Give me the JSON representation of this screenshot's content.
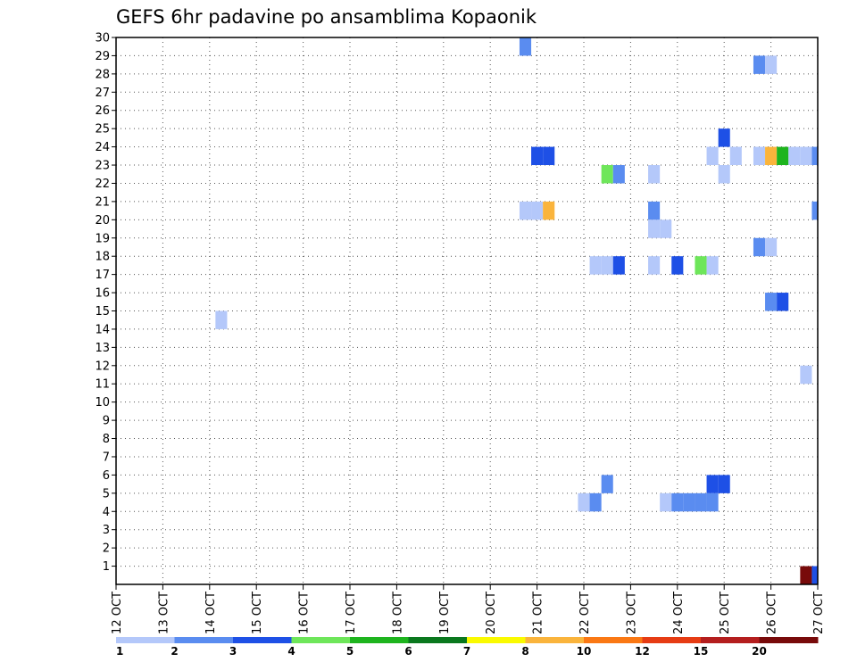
{
  "chart_data": {
    "type": "heatmap",
    "title": "GEFS 6hr padavine po ansamblima Kopaonik",
    "xlabel": "",
    "ylabel": "",
    "x_tick_labels": [
      "12 OCT",
      "13 OCT",
      "14 OCT",
      "15 OCT",
      "16 OCT",
      "17 OCT",
      "18 OCT",
      "19 OCT",
      "20 OCT",
      "21 OCT",
      "22 OCT",
      "23 OCT",
      "24 OCT",
      "25 OCT",
      "26 OCT",
      "27 OCT"
    ],
    "x_range_days": [
      0,
      15
    ],
    "y_tick_labels": [
      "1",
      "2",
      "3",
      "4",
      "5",
      "6",
      "7",
      "8",
      "9",
      "10",
      "11",
      "12",
      "13",
      "14",
      "15",
      "16",
      "17",
      "18",
      "19",
      "20",
      "21",
      "22",
      "23",
      "24",
      "25",
      "26",
      "27",
      "28",
      "29",
      "30"
    ],
    "y_range": [
      0,
      30
    ],
    "grid": true,
    "grid_style": "dotted",
    "legend_placement": "bottom",
    "colorbar": {
      "labels": [
        "1",
        "2",
        "3",
        "4",
        "5",
        "6",
        "7",
        "8",
        "10",
        "12",
        "15",
        "20"
      ],
      "colors": [
        "#b4c8fa",
        "#5a8cf0",
        "#1e50e6",
        "#6ee65a",
        "#1eb41e",
        "#0a781e",
        "#fafa00",
        "#fab43c",
        "#fa7814",
        "#e63c14",
        "#b41e1e",
        "#780a0a"
      ]
    },
    "time_step_hours": 6,
    "cells": [
      {
        "t": 8.75,
        "m": 30,
        "c": 1
      },
      {
        "t": 13.75,
        "m": 29,
        "c": 1
      },
      {
        "t": 14.0,
        "m": 29,
        "c": 0
      },
      {
        "t": 13.0,
        "m": 25,
        "c": 2
      },
      {
        "t": 9.0,
        "m": 24,
        "c": 2
      },
      {
        "t": 9.25,
        "m": 24,
        "c": 2
      },
      {
        "t": 12.75,
        "m": 24,
        "c": 0
      },
      {
        "t": 13.25,
        "m": 24,
        "c": 0
      },
      {
        "t": 13.75,
        "m": 24,
        "c": 0
      },
      {
        "t": 14.0,
        "m": 24,
        "c": 7
      },
      {
        "t": 14.25,
        "m": 24,
        "c": 4
      },
      {
        "t": 14.5,
        "m": 24,
        "c": 0
      },
      {
        "t": 14.75,
        "m": 24,
        "c": 0
      },
      {
        "t": 15.0,
        "m": 24,
        "c": 1
      },
      {
        "t": 10.5,
        "m": 23,
        "c": 3
      },
      {
        "t": 10.75,
        "m": 23,
        "c": 1
      },
      {
        "t": 11.5,
        "m": 23,
        "c": 0
      },
      {
        "t": 13.0,
        "m": 23,
        "c": 0
      },
      {
        "t": 8.75,
        "m": 21,
        "c": 0
      },
      {
        "t": 9.0,
        "m": 21,
        "c": 0
      },
      {
        "t": 9.25,
        "m": 21,
        "c": 7
      },
      {
        "t": 11.5,
        "m": 21,
        "c": 1
      },
      {
        "t": 15.0,
        "m": 21,
        "c": 1
      },
      {
        "t": 11.5,
        "m": 20,
        "c": 0
      },
      {
        "t": 11.75,
        "m": 20,
        "c": 0
      },
      {
        "t": 13.75,
        "m": 19,
        "c": 1
      },
      {
        "t": 14.0,
        "m": 19,
        "c": 0
      },
      {
        "t": 10.25,
        "m": 18,
        "c": 0
      },
      {
        "t": 10.5,
        "m": 18,
        "c": 0
      },
      {
        "t": 10.75,
        "m": 18,
        "c": 2
      },
      {
        "t": 11.5,
        "m": 18,
        "c": 0
      },
      {
        "t": 12.0,
        "m": 18,
        "c": 2
      },
      {
        "t": 12.5,
        "m": 18,
        "c": 3
      },
      {
        "t": 12.75,
        "m": 18,
        "c": 0
      },
      {
        "t": 14.0,
        "m": 16,
        "c": 1
      },
      {
        "t": 14.25,
        "m": 16,
        "c": 2
      },
      {
        "t": 2.25,
        "m": 15,
        "c": 0
      },
      {
        "t": 14.75,
        "m": 12,
        "c": 0
      },
      {
        "t": 10.5,
        "m": 6,
        "c": 1
      },
      {
        "t": 12.75,
        "m": 6,
        "c": 2
      },
      {
        "t": 13.0,
        "m": 6,
        "c": 2
      },
      {
        "t": 10.0,
        "m": 5,
        "c": 0
      },
      {
        "t": 10.25,
        "m": 5,
        "c": 1
      },
      {
        "t": 11.75,
        "m": 5,
        "c": 0
      },
      {
        "t": 12.0,
        "m": 5,
        "c": 1
      },
      {
        "t": 12.25,
        "m": 5,
        "c": 1
      },
      {
        "t": 12.5,
        "m": 5,
        "c": 1
      },
      {
        "t": 12.75,
        "m": 5,
        "c": 1
      },
      {
        "t": 14.75,
        "m": 1,
        "c": 11
      },
      {
        "t": 15.0,
        "m": 1,
        "c": 2
      }
    ]
  }
}
